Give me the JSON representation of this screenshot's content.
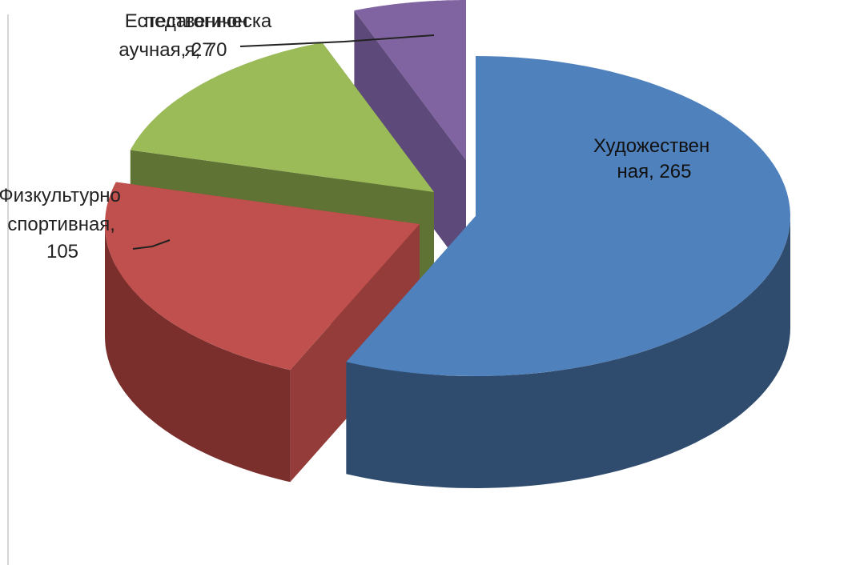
{
  "chart_data": {
    "type": "pie",
    "title": "",
    "categories": [
      "Художественная",
      "Физкультурно-спортивная",
      "Социально-педагогическая",
      "Естественнонаучная"
    ],
    "values": [
      265,
      105,
      70,
      27
    ],
    "data_labels": [
      [
        "Художествен",
        "ная, 265"
      ],
      [
        "Физкультурно",
        "спортивная,",
        "105"
      ],
      [
        "педагогическа",
        "я, 70"
      ],
      [
        "Естественнон",
        "аучная, 27"
      ]
    ],
    "colors": {
      "top": [
        "#4f81bd",
        "#c0504d",
        "#9bbb59",
        "#8064a2"
      ],
      "side": [
        "#2f4b6e",
        "#7a2f2d",
        "#5e7332",
        "#4d3c66"
      ],
      "cut": [
        "#3b6391",
        "#943c39",
        "#5f7434",
        "#5e4a7a"
      ]
    },
    "legend": "none",
    "three_d": true,
    "exploded": true
  }
}
